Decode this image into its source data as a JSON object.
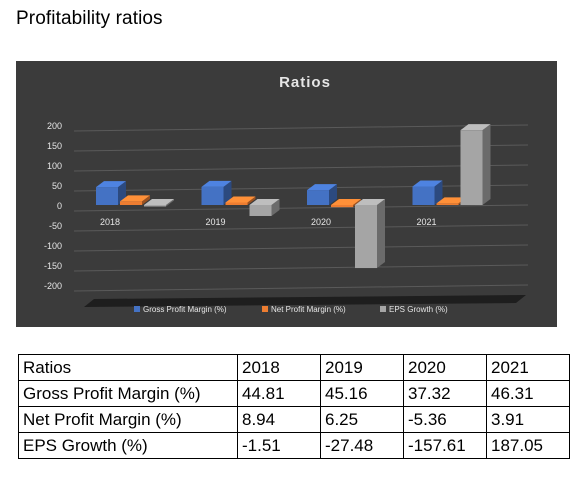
{
  "page": {
    "heading": "Profitability ratios"
  },
  "colors": {
    "gross_margin": "#4472C4",
    "net_margin": "#ED7D31",
    "eps_growth": "#A5A5A5",
    "chart_background": "#3b3b3b"
  },
  "chart_data": {
    "type": "bar",
    "title": "Ratios",
    "categories": [
      "2018",
      "2019",
      "2020",
      "2021"
    ],
    "series": [
      {
        "name": "Gross Profit Margin (%)",
        "values": [
          44.81,
          45.16,
          37.32,
          46.31
        ]
      },
      {
        "name": "Net Profit Margin (%)",
        "values": [
          8.94,
          6.25,
          -5.36,
          3.91
        ]
      },
      {
        "name": "EPS Growth (%)",
        "values": [
          -1.51,
          -27.48,
          -157.61,
          187.05
        ]
      }
    ],
    "yticks": [
      "200",
      "150",
      "100",
      "50",
      "0",
      "-50",
      "-100",
      "-150",
      "-200"
    ],
    "ylim": [
      -200,
      200
    ],
    "grid": true,
    "legend_position": "bottom"
  },
  "table": {
    "header": [
      "Ratios",
      "2018",
      "2019",
      "2020",
      "2021"
    ],
    "rows": [
      [
        "Gross Profit Margin (%)",
        "44.81",
        "45.16",
        "37.32",
        "46.31"
      ],
      [
        "Net Profit Margin (%)",
        "8.94",
        "6.25",
        "-5.36",
        "3.91"
      ],
      [
        "EPS Growth (%)",
        "-1.51",
        "-27.48",
        "-157.61",
        "187.05"
      ]
    ]
  }
}
